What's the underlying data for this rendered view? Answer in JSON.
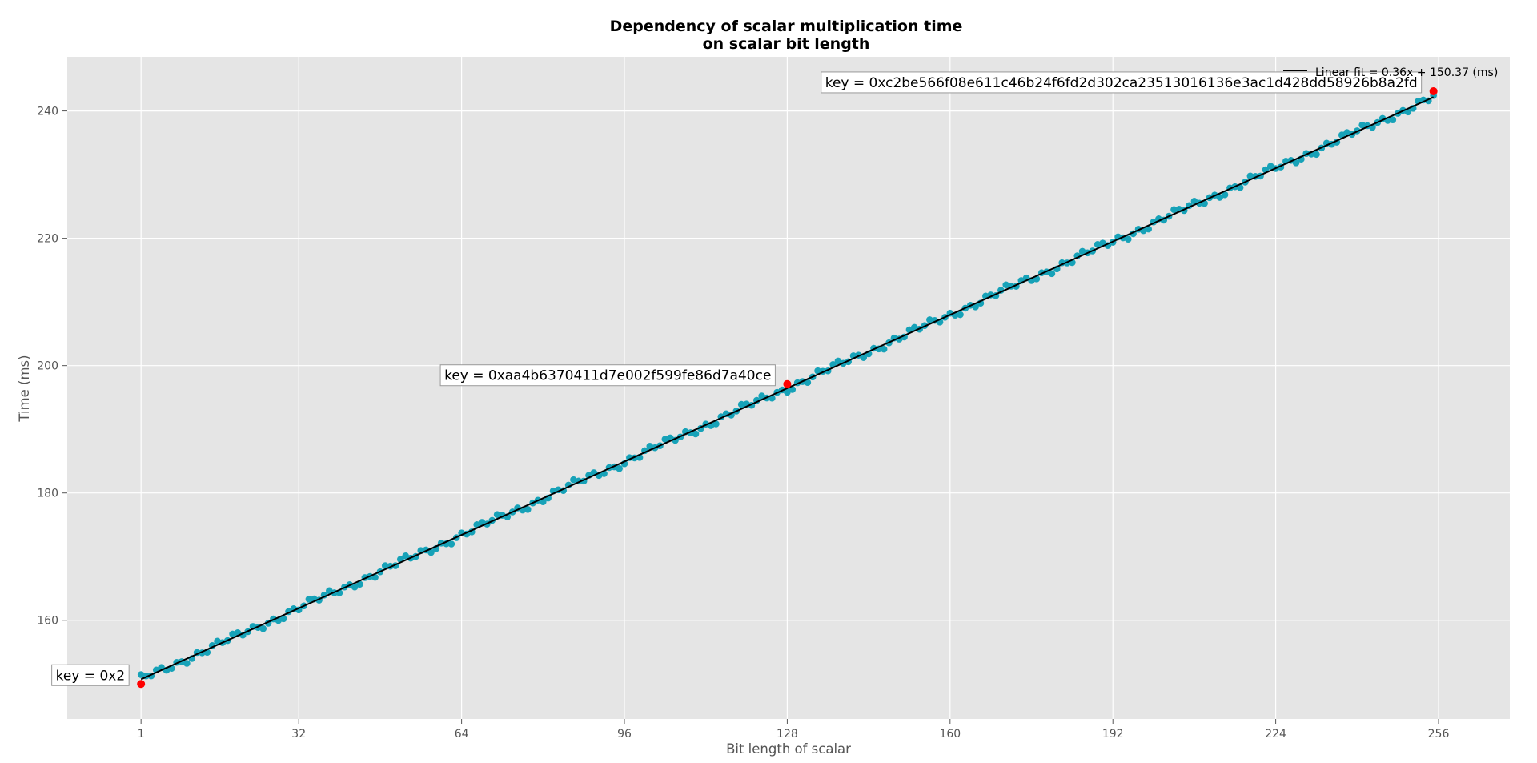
{
  "chart_data": {
    "type": "scatter",
    "title": "Dependency of scalar multiplication time\non scalar bit length",
    "xlabel": "Bit length of scalar",
    "ylabel": "Time (ms)",
    "xlim": [
      -13.5,
      270
    ],
    "ylim": [
      144.5,
      248.5
    ],
    "xticks": [
      1,
      32,
      64,
      96,
      128,
      160,
      192,
      224,
      256
    ],
    "yticks": [
      160,
      180,
      200,
      220,
      240
    ],
    "grid": true,
    "background": "#e5e5e5",
    "grid_color": "#ffffff",
    "legend_position": "top-right",
    "fit": {
      "label": "Linear fit = 0.36x + 150.37 (ms)",
      "slope": 0.36,
      "intercept": 150.37,
      "x_range": [
        1,
        255
      ],
      "color": "#000000"
    },
    "series": [
      {
        "marker_color": "#17a2b8",
        "x_range": [
          1,
          255
        ],
        "step": 1,
        "y_model": {
          "slope": 0.36,
          "intercept": 150.37
        }
      }
    ],
    "highlighted_points": [
      {
        "x": 1,
        "y": 150.0,
        "color": "#ff0000",
        "annotation": "key = 0x2",
        "annotation_side": "left"
      },
      {
        "x": 128,
        "y": 197.1,
        "color": "#ff0000",
        "annotation": "key = 0xaa4b6370411d7e002f599fe86d7a40ce",
        "annotation_side": "left"
      },
      {
        "x": 255,
        "y": 243.1,
        "color": "#ff0000",
        "annotation": "key = 0xc2be566f08e611c46b24f6fd2d302ca23513016136e3ac1d428dd58926b8a2fd",
        "annotation_side": "left"
      }
    ]
  }
}
